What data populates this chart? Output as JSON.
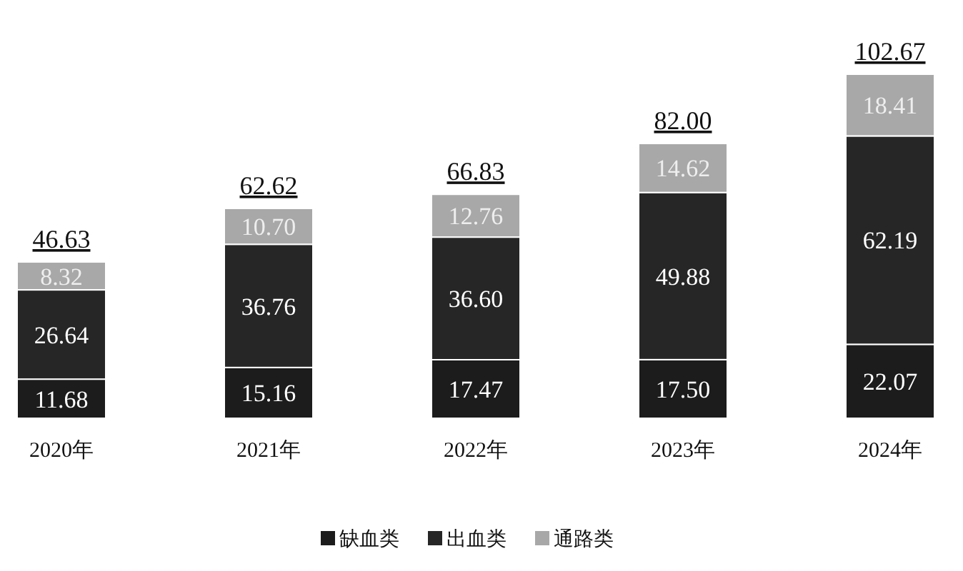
{
  "chart_data": {
    "type": "bar",
    "stacked": true,
    "legend": "bottom",
    "categories": [
      "2020年",
      "2021年",
      "2022年",
      "2023年",
      "2024年"
    ],
    "series": [
      {
        "name": "缺血类",
        "color": "#1c1c1c",
        "values": [
          11.68,
          15.16,
          17.47,
          17.5,
          22.07
        ],
        "value_labels": [
          "11.68",
          "15.16",
          "17.47",
          "17.50",
          "22.07"
        ]
      },
      {
        "name": "出血类",
        "color": "#262626",
        "values": [
          26.64,
          36.76,
          36.6,
          49.88,
          62.19
        ],
        "value_labels": [
          "26.64",
          "36.76",
          "36.60",
          "49.88",
          "62.19"
        ]
      },
      {
        "name": "通路类",
        "color": "#a8a8a8",
        "values": [
          8.32,
          10.7,
          12.76,
          14.62,
          18.41
        ],
        "value_labels": [
          "8.32",
          "10.70",
          "12.76",
          "14.62",
          "18.41"
        ]
      }
    ],
    "totals": [
      "46.63",
      "62.62",
      "66.83",
      "82.00",
      "102.67"
    ]
  }
}
